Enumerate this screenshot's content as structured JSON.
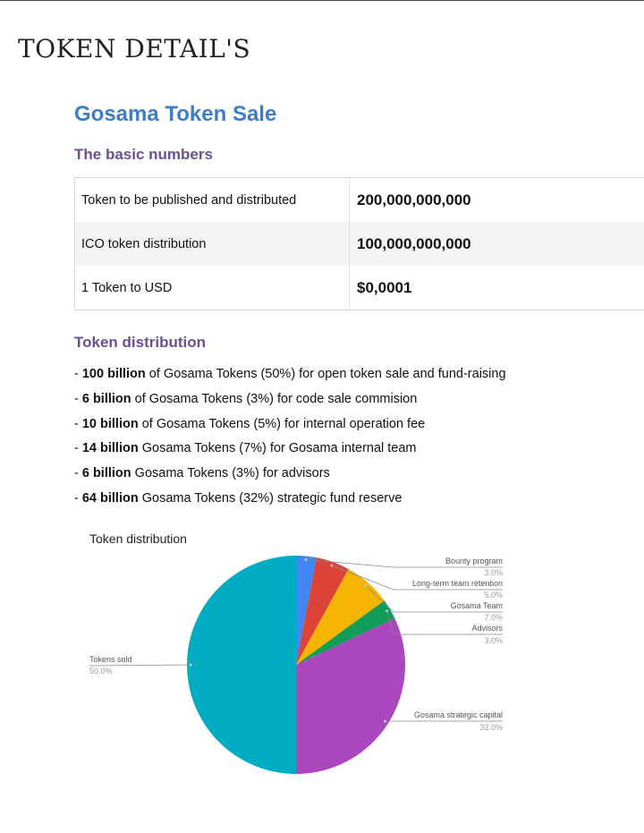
{
  "page_title": "TOKEN DETAIL'S",
  "doc_title": "Gosama Token Sale",
  "basic_numbers": {
    "heading": "The basic numbers",
    "rows": [
      {
        "label": "Token to be published and distributed",
        "value": "200,000,000,000"
      },
      {
        "label": "ICO token distribution",
        "value": "100,000,000,000"
      },
      {
        "label": "1 Token to USD",
        "value": "$0,0001"
      }
    ]
  },
  "token_distribution": {
    "heading": "Token distribution",
    "items": [
      {
        "prefix": "- ",
        "bold": "100 billion",
        "rest": " of Gosama Tokens (50%) for open token sale and fund-raising"
      },
      {
        "prefix": "- ",
        "bold": "6 billion",
        "rest": " of Gosama Tokens (3%) for code sale commision"
      },
      {
        "prefix": "- ",
        "bold": "10 billion",
        "rest": " of Gosama Tokens (5%) for internal operation fee"
      },
      {
        "prefix": "- ",
        "bold": "14 billion",
        "rest": " Gosama Tokens (7%) for Gosama internal team"
      },
      {
        "prefix": "- ",
        "bold": "6 billion",
        "rest": " Gosama Tokens (3%) for advisors"
      },
      {
        "prefix": "- ",
        "bold": "64 billion",
        "rest": " Gosama Tokens (32%) strategic fund reserve"
      }
    ]
  },
  "chart_data": {
    "type": "pie",
    "title": "Token distribution",
    "slices": [
      {
        "label": "Bounty program",
        "value": 3.0,
        "value_label": "3.0%",
        "color": "#4285f4"
      },
      {
        "label": "Long-term team retention",
        "value": 5.0,
        "value_label": "5.0%",
        "color": "#db4437"
      },
      {
        "label": "Gosama Team",
        "value": 7.0,
        "value_label": "7.0%",
        "color": "#f4b400"
      },
      {
        "label": "Advisors",
        "value": 3.0,
        "value_label": "3.0%",
        "color": "#0f9d58"
      },
      {
        "label": "Gosama strategic capital",
        "value": 32.0,
        "value_label": "32.0%",
        "color": "#ab47bc"
      },
      {
        "label": "Tokens sold",
        "value": 50.0,
        "value_label": "50.0%",
        "color": "#00acc1"
      }
    ]
  }
}
